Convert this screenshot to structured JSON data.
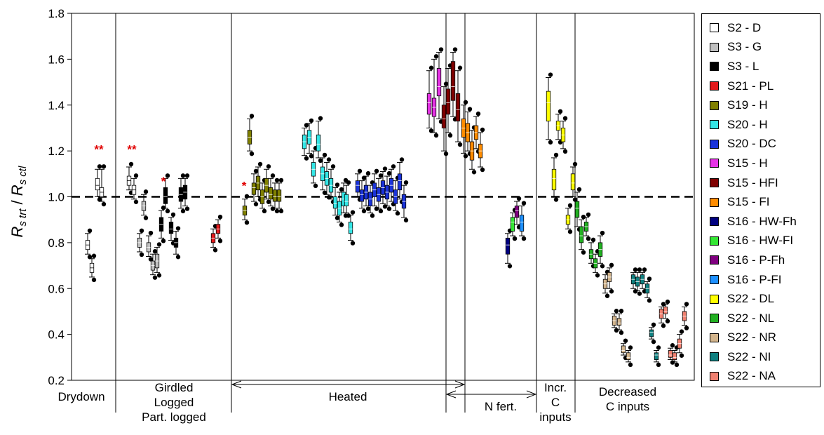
{
  "chart_data": {
    "type": "box",
    "ylabel": {
      "r1": "R",
      "sub1": "s trt",
      "slash": " / ",
      "r2": "R",
      "sub2": "s ctl"
    },
    "ylim": [
      0.2,
      1.8
    ],
    "yticks": [
      "0.2",
      "0.4",
      "0.6",
      "0.8",
      "1.0",
      "1.2",
      "1.4",
      "1.6",
      "1.8"
    ],
    "reference_line": 1.0,
    "groups": [
      {
        "label": "Drydown"
      },
      {
        "label": "Girdled\nLogged\nPart. logged"
      },
      {
        "label": "Heated"
      },
      {
        "label": "N fert."
      },
      {
        "label": "Incr.\nC\ninputs"
      },
      {
        "label": "Decreased\nC inputs"
      }
    ],
    "annotations": [
      {
        "text": "**",
        "x": 141,
        "y": 1.19
      },
      {
        "text": "**",
        "x": 188,
        "y": 1.19
      },
      {
        "text": "*",
        "x": 233,
        "y": 1.05
      },
      {
        "text": "*",
        "x": 348,
        "y": 1.03
      }
    ],
    "legend": [
      {
        "name": "S2 - D",
        "color": "#ffffff"
      },
      {
        "name": "S3 - G",
        "color": "#c0c0c0"
      },
      {
        "name": "S3 - L",
        "color": "#000000"
      },
      {
        "name": "S21 - PL",
        "color": "#e41a1c"
      },
      {
        "name": "S19 - H",
        "color": "#808000"
      },
      {
        "name": "S20 - H",
        "color": "#33e6e6"
      },
      {
        "name": "S20 - DC",
        "color": "#1a33d9"
      },
      {
        "name": "S15 - H",
        "color": "#e633e6"
      },
      {
        "name": "S15 - HFI",
        "color": "#800000"
      },
      {
        "name": "S15 - FI",
        "color": "#ff8c00"
      },
      {
        "name": "S16 - HW-Fh",
        "color": "#000080"
      },
      {
        "name": "S16 - HW-FI",
        "color": "#33e633"
      },
      {
        "name": "S16 - P-Fh",
        "color": "#800080"
      },
      {
        "name": "S16 - P-FI",
        "color": "#1e90ff"
      },
      {
        "name": "S22 - DL",
        "color": "#ffff00"
      },
      {
        "name": "S22 - NL",
        "color": "#22b022"
      },
      {
        "name": "S22 - NR",
        "color": "#d2b48c"
      },
      {
        "name": "S22 - NI",
        "color": "#108080"
      },
      {
        "name": "S22 - NA",
        "color": "#f08070"
      }
    ],
    "boxes": [
      {
        "x": 125,
        "series": "S2 - D",
        "q1": 0.77,
        "median": 0.79,
        "q3": 0.81,
        "lo": 0.75,
        "hi": 0.84
      },
      {
        "x": 131,
        "series": "S2 - D",
        "q1": 0.67,
        "median": 0.69,
        "q3": 0.71,
        "lo": 0.65,
        "hi": 0.73
      },
      {
        "x": 139,
        "series": "S2 - D",
        "q1": 1.03,
        "median": 1.05,
        "q3": 1.08,
        "lo": 1.0,
        "hi": 1.12
      },
      {
        "x": 145,
        "series": "S2 - D",
        "q1": 1.0,
        "median": 1.02,
        "q3": 1.04,
        "lo": 0.98,
        "hi": 1.12
      },
      {
        "x": 184,
        "series": "S2 - D",
        "q1": 1.05,
        "median": 1.07,
        "q3": 1.09,
        "lo": 1.03,
        "hi": 1.13
      },
      {
        "x": 191,
        "series": "S2 - D",
        "q1": 1.01,
        "median": 1.03,
        "q3": 1.05,
        "lo": 0.99,
        "hi": 1.08
      },
      {
        "x": 199,
        "series": "S3 - G",
        "q1": 0.78,
        "median": 0.8,
        "q3": 0.82,
        "lo": 0.76,
        "hi": 0.84
      },
      {
        "x": 205,
        "series": "S3 - G",
        "q1": 0.94,
        "median": 0.96,
        "q3": 0.98,
        "lo": 0.92,
        "hi": 1.01
      },
      {
        "x": 212,
        "series": "S3 - G",
        "q1": 0.76,
        "median": 0.78,
        "q3": 0.8,
        "lo": 0.74,
        "hi": 0.83
      },
      {
        "x": 218,
        "series": "S3 - G",
        "q1": 0.68,
        "median": 0.7,
        "q3": 0.72,
        "lo": 0.66,
        "hi": 0.75
      },
      {
        "x": 224,
        "series": "S3 - G",
        "q1": 0.69,
        "median": 0.72,
        "q3": 0.75,
        "lo": 0.67,
        "hi": 0.78
      },
      {
        "x": 230,
        "series": "S3 - L",
        "q1": 0.85,
        "median": 0.88,
        "q3": 0.91,
        "lo": 0.82,
        "hi": 0.94
      },
      {
        "x": 236,
        "series": "S3 - L",
        "q1": 0.97,
        "median": 1.0,
        "q3": 1.04,
        "lo": 0.95,
        "hi": 1.08
      },
      {
        "x": 244,
        "series": "S3 - L",
        "q1": 0.84,
        "median": 0.86,
        "q3": 0.89,
        "lo": 0.81,
        "hi": 0.91
      },
      {
        "x": 251,
        "series": "S3 - L",
        "q1": 0.78,
        "median": 0.8,
        "q3": 0.82,
        "lo": 0.75,
        "hi": 0.85
      },
      {
        "x": 258,
        "series": "S3 - L",
        "q1": 0.98,
        "median": 1.01,
        "q3": 1.04,
        "lo": 0.95,
        "hi": 1.08
      },
      {
        "x": 264,
        "series": "S3 - L",
        "q1": 0.99,
        "median": 1.02,
        "q3": 1.05,
        "lo": 0.96,
        "hi": 1.08
      },
      {
        "x": 304,
        "series": "S21 - PL",
        "q1": 0.8,
        "median": 0.82,
        "q3": 0.84,
        "lo": 0.78,
        "hi": 0.86
      },
      {
        "x": 311,
        "series": "S21 - PL",
        "q1": 0.84,
        "median": 0.86,
        "q3": 0.88,
        "lo": 0.82,
        "hi": 0.9
      },
      {
        "x": 349,
        "series": "S19 - H",
        "q1": 0.92,
        "median": 0.94,
        "q3": 0.96,
        "lo": 0.9,
        "hi": 0.99
      },
      {
        "x": 356,
        "series": "S19 - H",
        "q1": 1.23,
        "median": 1.26,
        "q3": 1.29,
        "lo": 1.2,
        "hi": 1.34
      },
      {
        "x": 362,
        "series": "S19 - H",
        "q1": 1.01,
        "median": 1.04,
        "q3": 1.06,
        "lo": 0.98,
        "hi": 1.1
      },
      {
        "x": 368,
        "series": "S19 - H",
        "q1": 1.03,
        "median": 1.06,
        "q3": 1.09,
        "lo": 1.0,
        "hi": 1.13
      },
      {
        "x": 374,
        "series": "S19 - H",
        "q1": 0.97,
        "median": 1.0,
        "q3": 1.03,
        "lo": 0.95,
        "hi": 1.06
      },
      {
        "x": 380,
        "series": "S19 - H",
        "q1": 1.02,
        "median": 1.05,
        "q3": 1.08,
        "lo": 0.99,
        "hi": 1.12
      },
      {
        "x": 386,
        "series": "S19 - H",
        "q1": 0.99,
        "median": 1.01,
        "q3": 1.04,
        "lo": 0.96,
        "hi": 1.08
      },
      {
        "x": 392,
        "series": "S19 - H",
        "q1": 0.98,
        "median": 1.0,
        "q3": 1.03,
        "lo": 0.95,
        "hi": 1.06
      },
      {
        "x": 398,
        "series": "S19 - H",
        "q1": 0.98,
        "median": 1.0,
        "q3": 1.03,
        "lo": 0.95,
        "hi": 1.06
      },
      {
        "x": 434,
        "series": "S20 - H",
        "q1": 1.21,
        "median": 1.24,
        "q3": 1.27,
        "lo": 1.18,
        "hi": 1.3
      },
      {
        "x": 441,
        "series": "S20 - H",
        "q1": 1.23,
        "median": 1.26,
        "q3": 1.29,
        "lo": 1.19,
        "hi": 1.32
      },
      {
        "x": 447,
        "series": "S20 - H",
        "q1": 1.09,
        "median": 1.12,
        "q3": 1.15,
        "lo": 1.06,
        "hi": 1.2
      },
      {
        "x": 454,
        "series": "S20 - H",
        "q1": 1.2,
        "median": 1.23,
        "q3": 1.27,
        "lo": 1.17,
        "hi": 1.33
      },
      {
        "x": 460,
        "series": "S20 - H",
        "q1": 1.07,
        "median": 1.1,
        "q3": 1.13,
        "lo": 1.03,
        "hi": 1.17
      },
      {
        "x": 466,
        "series": "S20 - H",
        "q1": 1.05,
        "median": 1.08,
        "q3": 1.11,
        "lo": 1.01,
        "hi": 1.15
      },
      {
        "x": 472,
        "series": "S20 - H",
        "q1": 1.02,
        "median": 1.05,
        "q3": 1.08,
        "lo": 0.99,
        "hi": 1.12
      },
      {
        "x": 478,
        "series": "S20 - H",
        "q1": 0.95,
        "median": 0.97,
        "q3": 1.0,
        "lo": 0.92,
        "hi": 1.04
      },
      {
        "x": 484,
        "series": "S20 - H",
        "q1": 0.92,
        "median": 0.95,
        "q3": 0.98,
        "lo": 0.89,
        "hi": 1.02
      },
      {
        "x": 490,
        "series": "S20 - H",
        "q1": 0.96,
        "median": 0.99,
        "q3": 1.02,
        "lo": 0.93,
        "hi": 1.06
      },
      {
        "x": 494,
        "series": "S20 - H",
        "q1": 0.96,
        "median": 0.98,
        "q3": 1.01,
        "lo": 0.93,
        "hi": 1.05
      },
      {
        "x": 500,
        "series": "S20 - H",
        "q1": 0.84,
        "median": 0.86,
        "q3": 0.89,
        "lo": 0.81,
        "hi": 0.92
      },
      {
        "x": 510,
        "series": "S20 - DC",
        "q1": 1.02,
        "median": 1.05,
        "q3": 1.07,
        "lo": 1.0,
        "hi": 1.1
      },
      {
        "x": 516,
        "series": "S20 - DC",
        "q1": 0.98,
        "median": 1.01,
        "q3": 1.03,
        "lo": 0.95,
        "hi": 1.07
      },
      {
        "x": 522,
        "series": "S20 - DC",
        "q1": 0.99,
        "median": 1.02,
        "q3": 1.05,
        "lo": 0.96,
        "hi": 1.09
      },
      {
        "x": 528,
        "series": "S20 - DC",
        "q1": 0.96,
        "median": 0.99,
        "q3": 1.02,
        "lo": 0.93,
        "hi": 1.05
      },
      {
        "x": 534,
        "series": "S20 - DC",
        "q1": 1.0,
        "median": 1.03,
        "q3": 1.06,
        "lo": 0.96,
        "hi": 1.1
      },
      {
        "x": 540,
        "series": "S20 - DC",
        "q1": 0.98,
        "median": 1.01,
        "q3": 1.04,
        "lo": 0.95,
        "hi": 1.08
      },
      {
        "x": 546,
        "series": "S20 - DC",
        "q1": 1.01,
        "median": 1.04,
        "q3": 1.07,
        "lo": 0.97,
        "hi": 1.11
      },
      {
        "x": 552,
        "series": "S20 - DC",
        "q1": 0.99,
        "median": 1.02,
        "q3": 1.05,
        "lo": 0.96,
        "hi": 1.09
      },
      {
        "x": 558,
        "series": "S20 - DC",
        "q1": 1.02,
        "median": 1.05,
        "q3": 1.08,
        "lo": 0.98,
        "hi": 1.12
      },
      {
        "x": 564,
        "series": "S20 - DC",
        "q1": 0.97,
        "median": 1.0,
        "q3": 1.03,
        "lo": 0.94,
        "hi": 1.07
      },
      {
        "x": 570,
        "series": "S20 - DC",
        "q1": 1.03,
        "median": 1.07,
        "q3": 1.1,
        "lo": 0.99,
        "hi": 1.15
      },
      {
        "x": 576,
        "series": "S20 - DC",
        "q1": 0.95,
        "median": 0.98,
        "q3": 1.01,
        "lo": 0.91,
        "hi": 1.05
      },
      {
        "x": 612,
        "series": "S15 - H",
        "q1": 1.36,
        "median": 1.41,
        "q3": 1.45,
        "lo": 1.3,
        "hi": 1.55
      },
      {
        "x": 619,
        "series": "S15 - H",
        "q1": 1.35,
        "median": 1.39,
        "q3": 1.43,
        "lo": 1.28,
        "hi": 1.6
      },
      {
        "x": 626,
        "series": "S15 - H",
        "q1": 1.44,
        "median": 1.48,
        "q3": 1.56,
        "lo": 1.34,
        "hi": 1.63
      },
      {
        "x": 633,
        "series": "S15 - HFI",
        "q1": 1.3,
        "median": 1.34,
        "q3": 1.4,
        "lo": 1.2,
        "hi": 1.48
      },
      {
        "x": 639,
        "series": "S15 - HFI",
        "q1": 1.36,
        "median": 1.41,
        "q3": 1.47,
        "lo": 1.28,
        "hi": 1.56
      },
      {
        "x": 646,
        "series": "S15 - HFI",
        "q1": 1.42,
        "median": 1.48,
        "q3": 1.59,
        "lo": 1.35,
        "hi": 1.63
      },
      {
        "x": 653,
        "series": "S15 - HFI",
        "q1": 1.33,
        "median": 1.38,
        "q3": 1.45,
        "lo": 1.24,
        "hi": 1.55
      },
      {
        "x": 661,
        "series": "S15 - FI",
        "q1": 1.26,
        "median": 1.3,
        "q3": 1.34,
        "lo": 1.19,
        "hi": 1.4
      },
      {
        "x": 667,
        "series": "S15 - FI",
        "q1": 1.24,
        "median": 1.28,
        "q3": 1.32,
        "lo": 1.2,
        "hi": 1.37
      },
      {
        "x": 673,
        "series": "S15 - FI",
        "q1": 1.16,
        "median": 1.2,
        "q3": 1.24,
        "lo": 1.12,
        "hi": 1.29
      },
      {
        "x": 679,
        "series": "S15 - FI",
        "q1": 1.25,
        "median": 1.28,
        "q3": 1.31,
        "lo": 1.21,
        "hi": 1.35
      },
      {
        "x": 685,
        "series": "S15 - FI",
        "q1": 1.17,
        "median": 1.2,
        "q3": 1.23,
        "lo": 1.13,
        "hi": 1.28
      },
      {
        "x": 724,
        "series": "S16 - HW-Fh",
        "q1": 0.75,
        "median": 0.79,
        "q3": 0.82,
        "lo": 0.71,
        "hi": 0.84
      },
      {
        "x": 731,
        "series": "S16 - HW-FI",
        "q1": 0.85,
        "median": 0.89,
        "q3": 0.91,
        "lo": 0.83,
        "hi": 0.93
      },
      {
        "x": 737,
        "series": "S16 - P-Fh",
        "q1": 0.91,
        "median": 0.94,
        "q3": 0.96,
        "lo": 0.88,
        "hi": 0.98
      },
      {
        "x": 744,
        "series": "S16 - P-FI",
        "q1": 0.85,
        "median": 0.89,
        "q3": 0.92,
        "lo": 0.83,
        "hi": 0.96
      },
      {
        "x": 782,
        "series": "S22 - DL",
        "q1": 1.33,
        "median": 1.41,
        "q3": 1.46,
        "lo": 1.25,
        "hi": 1.52
      },
      {
        "x": 790,
        "series": "S22 - DL",
        "q1": 1.03,
        "median": 1.08,
        "q3": 1.12,
        "lo": 1.0,
        "hi": 1.17
      },
      {
        "x": 796,
        "series": "S22 - DL",
        "q1": 1.29,
        "median": 1.31,
        "q3": 1.33,
        "lo": 1.25,
        "hi": 1.36
      },
      {
        "x": 803,
        "series": "S22 - DL",
        "q1": 1.24,
        "median": 1.27,
        "q3": 1.3,
        "lo": 1.21,
        "hi": 1.33
      },
      {
        "x": 810,
        "series": "S22 - DL",
        "q1": 0.88,
        "median": 0.9,
        "q3": 0.92,
        "lo": 0.86,
        "hi": 0.95
      },
      {
        "x": 817,
        "series": "S22 - DL",
        "q1": 1.03,
        "median": 1.06,
        "q3": 1.1,
        "lo": 1.0,
        "hi": 1.13
      },
      {
        "x": 823,
        "series": "S22 - NL",
        "q1": 0.91,
        "median": 0.95,
        "q3": 0.98,
        "lo": 0.87,
        "hi": 1.02
      },
      {
        "x": 829,
        "series": "S22 - NL",
        "q1": 0.8,
        "median": 0.83,
        "q3": 0.87,
        "lo": 0.77,
        "hi": 0.9
      },
      {
        "x": 836,
        "series": "S22 - NL",
        "q1": 0.85,
        "median": 0.87,
        "q3": 0.89,
        "lo": 0.83,
        "hi": 0.91
      },
      {
        "x": 843,
        "series": "S22 - NL",
        "q1": 0.73,
        "median": 0.75,
        "q3": 0.77,
        "lo": 0.71,
        "hi": 0.8
      },
      {
        "x": 849,
        "series": "S22 - NL",
        "q1": 0.69,
        "median": 0.71,
        "q3": 0.73,
        "lo": 0.67,
        "hi": 0.75
      },
      {
        "x": 856,
        "series": "S22 - NL",
        "q1": 0.74,
        "median": 0.77,
        "q3": 0.8,
        "lo": 0.71,
        "hi": 0.83
      },
      {
        "x": 863,
        "series": "S22 - NR",
        "q1": 0.6,
        "median": 0.62,
        "q3": 0.64,
        "lo": 0.58,
        "hi": 0.66
      },
      {
        "x": 869,
        "series": "S22 - NR",
        "q1": 0.63,
        "median": 0.65,
        "q3": 0.67,
        "lo": 0.6,
        "hi": 0.69
      },
      {
        "x": 876,
        "series": "S22 - NR",
        "q1": 0.44,
        "median": 0.46,
        "q3": 0.48,
        "lo": 0.43,
        "hi": 0.49
      },
      {
        "x": 883,
        "series": "S22 - NR",
        "q1": 0.44,
        "median": 0.45,
        "q3": 0.47,
        "lo": 0.42,
        "hi": 0.49
      },
      {
        "x": 889,
        "series": "S22 - NR",
        "q1": 0.32,
        "median": 0.33,
        "q3": 0.35,
        "lo": 0.31,
        "hi": 0.36
      },
      {
        "x": 896,
        "series": "S22 - NR",
        "q1": 0.29,
        "median": 0.3,
        "q3": 0.32,
        "lo": 0.28,
        "hi": 0.33
      },
      {
        "x": 903,
        "series": "S22 - NI",
        "q1": 0.62,
        "median": 0.64,
        "q3": 0.66,
        "lo": 0.6,
        "hi": 0.67
      },
      {
        "x": 909,
        "series": "S22 - NI",
        "q1": 0.61,
        "median": 0.63,
        "q3": 0.65,
        "lo": 0.59,
        "hi": 0.67
      },
      {
        "x": 916,
        "series": "S22 - NI",
        "q1": 0.62,
        "median": 0.64,
        "q3": 0.66,
        "lo": 0.6,
        "hi": 0.67
      },
      {
        "x": 923,
        "series": "S22 - NI",
        "q1": 0.58,
        "median": 0.6,
        "q3": 0.62,
        "lo": 0.56,
        "hi": 0.63
      },
      {
        "x": 929,
        "series": "S22 - NI",
        "q1": 0.39,
        "median": 0.41,
        "q3": 0.42,
        "lo": 0.38,
        "hi": 0.43
      },
      {
        "x": 936,
        "series": "S22 - NI",
        "q1": 0.29,
        "median": 0.31,
        "q3": 0.32,
        "lo": 0.28,
        "hi": 0.33
      },
      {
        "x": 943,
        "series": "S22 - NA",
        "q1": 0.47,
        "median": 0.49,
        "q3": 0.51,
        "lo": 0.45,
        "hi": 0.52
      },
      {
        "x": 949,
        "series": "S22 - NA",
        "q1": 0.49,
        "median": 0.5,
        "q3": 0.52,
        "lo": 0.47,
        "hi": 0.53
      },
      {
        "x": 956,
        "series": "S22 - NA",
        "q1": 0.3,
        "median": 0.31,
        "q3": 0.33,
        "lo": 0.29,
        "hi": 0.34
      },
      {
        "x": 962,
        "series": "S22 - NA",
        "q1": 0.29,
        "median": 0.3,
        "q3": 0.32,
        "lo": 0.28,
        "hi": 0.33
      },
      {
        "x": 969,
        "series": "S22 - NA",
        "q1": 0.34,
        "median": 0.36,
        "q3": 0.38,
        "lo": 0.32,
        "hi": 0.4
      },
      {
        "x": 976,
        "series": "S22 - NA",
        "q1": 0.46,
        "median": 0.48,
        "q3": 0.5,
        "lo": 0.44,
        "hi": 0.52
      }
    ]
  }
}
